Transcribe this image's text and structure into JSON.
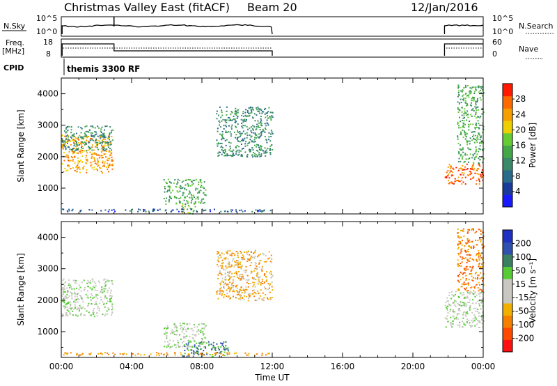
{
  "header": {
    "title": "Christmas Valley East (fitACF)",
    "beam": "Beam 20",
    "date": "12/Jan/2016"
  },
  "status_panel": {
    "nsky_label": "N.Sky",
    "nsky_ticks": [
      "10^5",
      "10^0"
    ],
    "nsearch_label": "N.Search",
    "nsearch_ticks": [
      "10^5",
      "10^0"
    ],
    "freq_label_1": "Freq.",
    "freq_label_2": "[MHz]",
    "freq_ticks": [
      "18",
      "8"
    ],
    "nave_label": "Nave",
    "nave_ticks": [
      "60",
      "0"
    ],
    "cpid_label": "CPID",
    "cpid_value": "themis 3300 RF"
  },
  "colors": {
    "power_scale": [
      "#1a1aff",
      "#1a3a9a",
      "#2a6a8a",
      "#3a8a6a",
      "#44a84a",
      "#66cc33",
      "#eed000",
      "#f5a000",
      "#ff6a00",
      "#ff1a00"
    ],
    "velocity_scale": [
      "#2030c0",
      "#3050b0",
      "#3a8060",
      "#55cc33",
      "#c8c8c0",
      "#c8c8c0",
      "#f0b000",
      "#f58000",
      "#ff4a00",
      "#ff1010"
    ]
  },
  "chart_data": [
    {
      "type": "heatmap",
      "ylabel": "Slant Range [km]",
      "colorbar_label": "Power [dB]",
      "colorbar_ticks": [
        "28",
        "24",
        "20",
        "16",
        "12",
        "8",
        "4"
      ],
      "x_range_hours": [
        0,
        24
      ],
      "y_range_km": [
        180,
        4500
      ],
      "yticks": [
        "4000",
        "3000",
        "2000",
        "1000"
      ],
      "ytick_values": [
        4000,
        3000,
        2000,
        1000
      ],
      "regions": [
        {
          "t0": 0.0,
          "t1": 2.9,
          "r0": 1500,
          "r1": 2700,
          "value_dB": 24
        },
        {
          "t0": 0.0,
          "t1": 2.9,
          "r0": 2200,
          "r1": 3000,
          "value_dB": 10
        },
        {
          "t0": 5.8,
          "t1": 8.2,
          "r0": 500,
          "r1": 1300,
          "value_dB": 14
        },
        {
          "t0": 6.8,
          "t1": 7.6,
          "r0": 200,
          "r1": 500,
          "value_dB": 18
        },
        {
          "t0": 8.8,
          "t1": 12.0,
          "r0": 2000,
          "r1": 3600,
          "value_dB": 10
        },
        {
          "t0": 21.8,
          "t1": 24.0,
          "r0": 1150,
          "r1": 1800,
          "value_dB": 26
        },
        {
          "t0": 22.5,
          "t1": 24.0,
          "r0": 1800,
          "r1": 4300,
          "value_dB": 12
        }
      ]
    },
    {
      "type": "heatmap",
      "ylabel": "Slant Range [km]",
      "colorbar_label": "Velocity [m s⁻¹]",
      "colorbar_ticks": [
        "200",
        "100",
        "50",
        "15",
        "-15",
        "-50",
        "-100",
        "-200"
      ],
      "x_range_hours": [
        0,
        24
      ],
      "y_range_km": [
        180,
        4500
      ],
      "yticks": [
        "4000",
        "3000",
        "2000",
        "1000"
      ],
      "ytick_values": [
        4000,
        3000,
        2000,
        1000
      ],
      "xlabel": "Time UT",
      "xticks": [
        "00:00",
        "04:00",
        "08:00",
        "12:00",
        "16:00",
        "20:00",
        "00:00"
      ],
      "xtick_hours": [
        0,
        4,
        8,
        12,
        16,
        20,
        24
      ],
      "regions": [
        {
          "t0": 0.0,
          "t1": 2.9,
          "r0": 1500,
          "r1": 2700,
          "value_ms": 0
        },
        {
          "t0": 5.8,
          "t1": 8.2,
          "r0": 500,
          "r1": 1300,
          "value_ms": 0
        },
        {
          "t0": 6.8,
          "t1": 9.5,
          "r0": 200,
          "r1": 700,
          "value_ms": 50
        },
        {
          "t0": 8.8,
          "t1": 12.0,
          "r0": 2000,
          "r1": 3600,
          "value_ms": -30
        },
        {
          "t0": 21.8,
          "t1": 24.0,
          "r0": 1150,
          "r1": 2300,
          "value_ms": 0
        },
        {
          "t0": 22.5,
          "t1": 24.0,
          "r0": 2300,
          "r1": 4300,
          "value_ms": -40
        }
      ]
    }
  ]
}
